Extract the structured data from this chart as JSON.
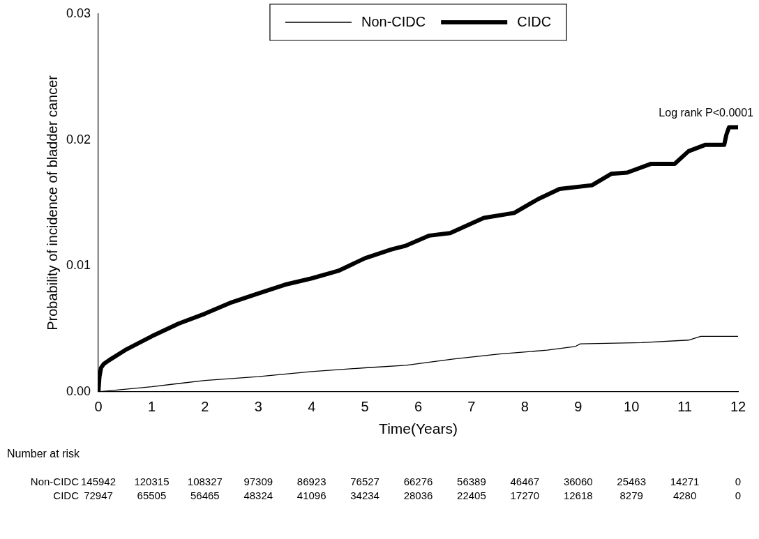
{
  "chart_data": {
    "type": "line",
    "xlabel": "Time(Years)",
    "ylabel": "Probability of incidence of bladder cancer",
    "xlim": [
      0,
      12
    ],
    "xticks": [
      0,
      1,
      2,
      3,
      4,
      5,
      6,
      7,
      8,
      9,
      10,
      11,
      12
    ],
    "ylim": [
      0,
      0.03
    ],
    "yticks": [
      {
        "value": 0,
        "label": "0.00"
      },
      {
        "value": 0.01,
        "label": "0.01"
      },
      {
        "value": 0.02,
        "label": "0.02"
      },
      {
        "value": 0.03,
        "label": "0.03"
      }
    ],
    "grid": false,
    "legend": "top",
    "marker": "none",
    "line_style": "solid",
    "series": [
      {
        "name": "Non-CIDC",
        "color": "#000000",
        "x": [
          0,
          1,
          2,
          3,
          4,
          5,
          5.77,
          6.66,
          7.53,
          8.42,
          8.95,
          9.04,
          10.19,
          11.07,
          11.3,
          12
        ],
        "values": [
          0,
          0.0004,
          0.0009,
          0.0012,
          0.0016,
          0.0019,
          0.0021,
          0.0026,
          0.003,
          0.0033,
          0.0036,
          0.0038,
          0.0039,
          0.0041,
          0.0044,
          0.0044
        ]
      },
      {
        "name": "CIDC",
        "color": "#000000",
        "x": [
          0,
          0.02,
          0.05,
          0.1,
          0.2,
          0.5,
          1,
          1.5,
          2,
          2.5,
          3,
          3.5,
          4,
          4.5,
          5,
          5.5,
          5.77,
          6.21,
          6.6,
          7.23,
          7.8,
          8.25,
          8.65,
          9.26,
          9.62,
          9.92,
          10.37,
          10.81,
          11.07,
          11.38,
          11.74,
          11.78,
          11.83,
          12
        ],
        "values": [
          0,
          0.0012,
          0.0019,
          0.0022,
          0.0025,
          0.0033,
          0.0044,
          0.0054,
          0.0062,
          0.0071,
          0.0078,
          0.0085,
          0.009,
          0.0096,
          0.0106,
          0.0113,
          0.0116,
          0.0124,
          0.0126,
          0.0138,
          0.0142,
          0.0153,
          0.0161,
          0.0164,
          0.0173,
          0.0174,
          0.0181,
          0.0181,
          0.0191,
          0.0196,
          0.0196,
          0.0204,
          0.021,
          0.021
        ]
      }
    ],
    "annotations": [
      {
        "text": "Log rank P<0.0001",
        "x": 12,
        "y": 0.021
      },
      "Number at risk",
      "Non-CIDC 145942 120315 108327 97309 86923 76527 66276 56389 46467 36060 25463 14271 0",
      "CIDC 72947 65505 56465 48324 41096 34234 28036 22405 17270 12618 8279 4280 0"
    ]
  }
}
